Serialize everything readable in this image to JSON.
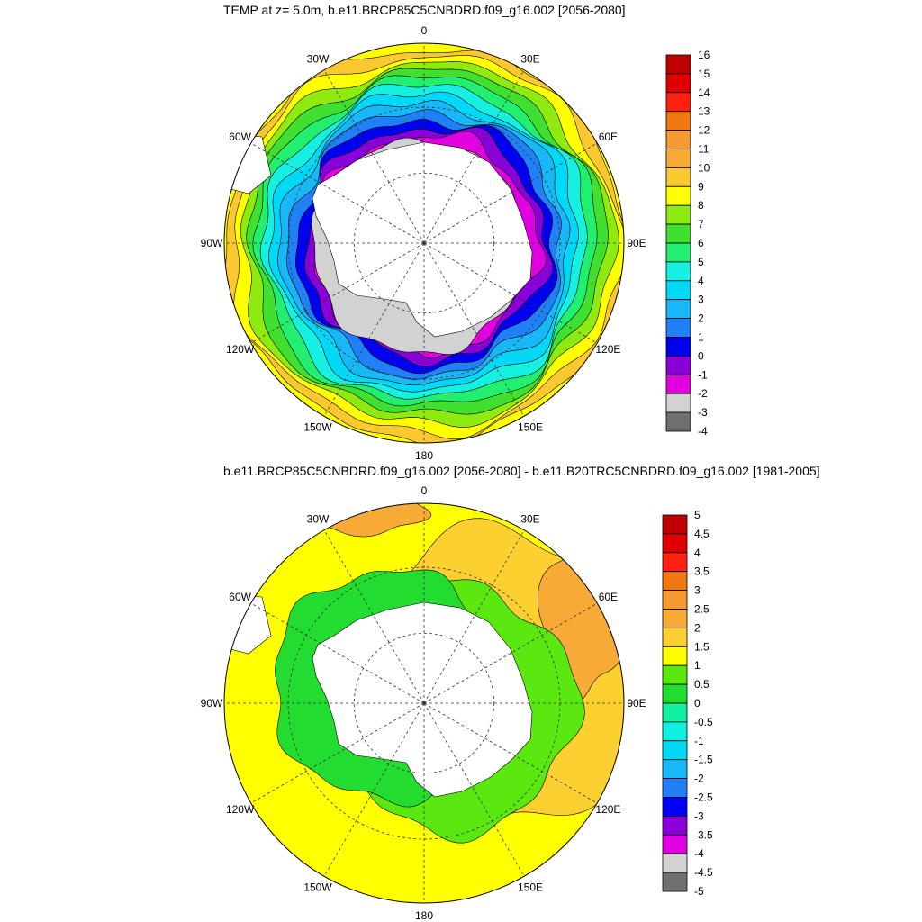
{
  "chart_data": [
    {
      "type": "heatmap",
      "projection": "south polar stereographic",
      "title": "TEMP at z=   5.0m, b.e11.BRCP85C5CNBDRD.f09_g16.002 [2056-2080]",
      "lon_labels": [
        "0",
        "30E",
        "60E",
        "90E",
        "120E",
        "150E",
        "180",
        "150W",
        "120W",
        "90W",
        "60W",
        "30W"
      ],
      "colorbar": {
        "levels": [
          "16",
          "15",
          "14",
          "13",
          "12",
          "11",
          "10",
          "9",
          "8",
          "7",
          "6",
          "5",
          "4",
          "3",
          "2",
          "1",
          "0",
          "-1",
          "-2",
          "-3",
          "-4"
        ],
        "colors": [
          "#c00000",
          "#e00000",
          "#ff2010",
          "#f07810",
          "#f59a30",
          "#f7aa35",
          "#fcc830",
          "#ffff00",
          "#8fea10",
          "#41e030",
          "#22ee70",
          "#16f0e0",
          "#00d8f8",
          "#18b8f8",
          "#2080f8",
          "#0000f0",
          "#8a00d8",
          "#e000e0",
          "#d2d2d2",
          "#707070"
        ]
      },
      "bands_outer_to_inner": [
        "10",
        "9",
        "8",
        "7",
        "6",
        "5",
        "4",
        "3",
        "2",
        "1",
        "0",
        "-1",
        "-2"
      ]
    },
    {
      "type": "heatmap",
      "projection": "south polar stereographic",
      "title": "b.e11.BRCP85C5CNBDRD.f09_g16.002 [2056-2080] - b.e11.B20TRC5CNBDRD.f09_g16.002 [1981-2005]",
      "lon_labels": [
        "0",
        "30E",
        "60E",
        "90E",
        "120E",
        "150E",
        "180",
        "150W",
        "120W",
        "90W",
        "60W",
        "30W"
      ],
      "colorbar": {
        "levels": [
          "5",
          "4.5",
          "4",
          "3.5",
          "3",
          "2.5",
          "2",
          "1.5",
          "1",
          "0.5",
          "0",
          "-0.5",
          "-1",
          "-1.5",
          "-2",
          "-2.5",
          "-3",
          "-3.5",
          "-4",
          "-4.5",
          "-5"
        ],
        "colors": [
          "#c00000",
          "#e00000",
          "#ff2010",
          "#f07810",
          "#f59a30",
          "#f7aa35",
          "#fcd030",
          "#ffff00",
          "#5ae810",
          "#22dc30",
          "#10f0a0",
          "#10f0e0",
          "#00d8f8",
          "#18b8f8",
          "#2080f8",
          "#0000f0",
          "#8a00d8",
          "#e000e0",
          "#d2d2d2",
          "#707070"
        ]
      },
      "dominant_values": [
        "1.5",
        "2",
        "0.5",
        "2.5",
        "3"
      ]
    }
  ],
  "colors": {
    "land": "#ffffff",
    "outline": "#000000",
    "ocean_warm": "#f7aa35"
  }
}
